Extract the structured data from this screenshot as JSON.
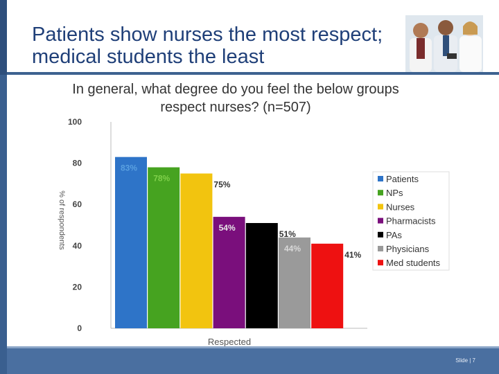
{
  "slide": {
    "title": "Patients show nurses the most respect; medical students the least",
    "subtitle": "In general, what degree do you feel the below groups respect nurses? (n=507)",
    "slide_number": "Slide | 7",
    "photo_icon": "doctors-photo",
    "colors": {
      "accent": "#1f3f78",
      "footer": "#4a6fa0"
    }
  },
  "chart_data": {
    "type": "bar",
    "title": "",
    "xlabel": "Respected",
    "ylabel": "% of respondents",
    "ylim": [
      0,
      100
    ],
    "yticks": [
      0,
      20,
      40,
      60,
      80,
      100
    ],
    "grid": false,
    "legend_position": "right",
    "series": [
      {
        "name": "Patients",
        "value": 83,
        "label": "83%",
        "color": "#2e74c8"
      },
      {
        "name": "NPs",
        "value": 78,
        "label": "78%",
        "color": "#46a320"
      },
      {
        "name": "Nurses",
        "value": 75,
        "label": "75%",
        "color": "#f2c40f"
      },
      {
        "name": "Pharmacists",
        "value": 54,
        "label": "54%",
        "color": "#7a0f7c"
      },
      {
        "name": "PAs",
        "value": 51,
        "label": "51%",
        "color": "#000000"
      },
      {
        "name": "Physicians",
        "value": 44,
        "label": "44%",
        "color": "#9a9a9a"
      },
      {
        "name": "Med students",
        "value": 41,
        "label": "41%",
        "color": "#ee1111"
      }
    ]
  }
}
